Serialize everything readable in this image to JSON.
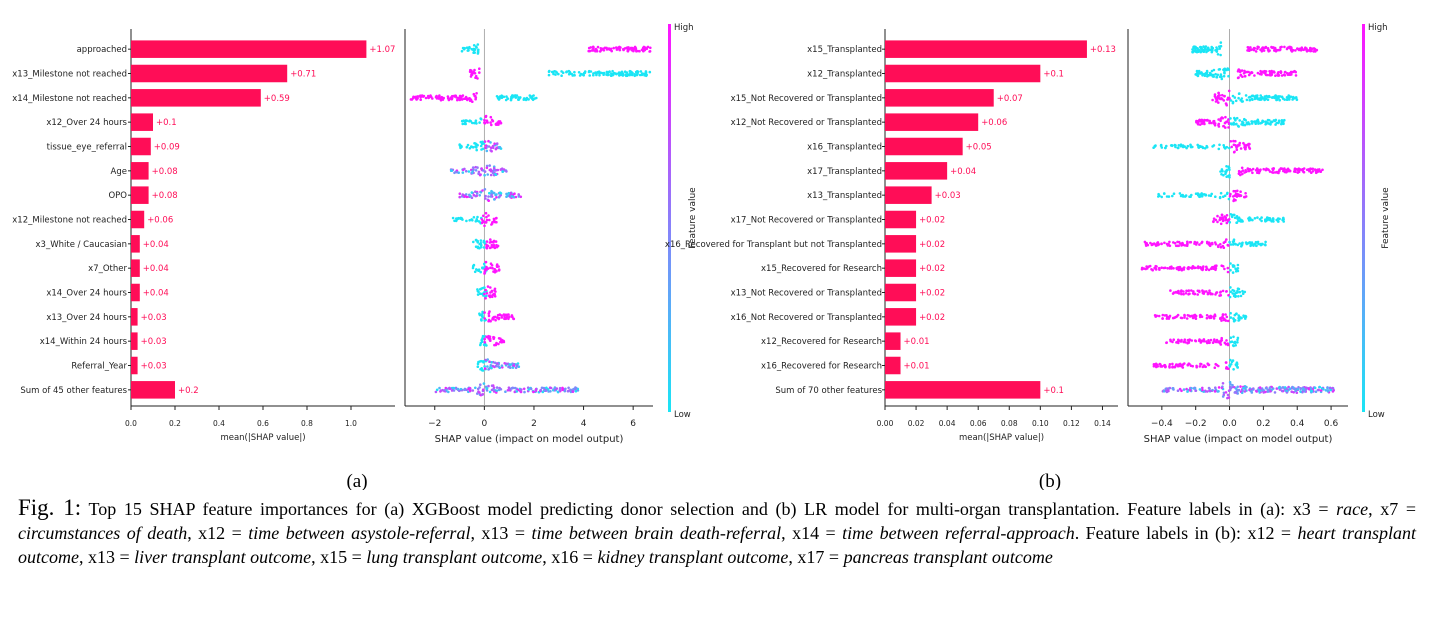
{
  "colors": {
    "bar": "#ff0d57",
    "low": "#1ae5f5",
    "high": "#ff14ff",
    "label": "#ff0d57",
    "axis": "#333333"
  },
  "panels": [
    {
      "id": "a",
      "sublabel": "(a)",
      "bar_chart": {
        "type": "bar",
        "orientation": "horizontal",
        "categories": [
          "approached",
          "x13_Milestone not reached",
          "x14_Milestone not reached",
          "x12_Over 24 hours",
          "tissue_eye_referral",
          "Age",
          "OPO",
          "x12_Milestone not reached",
          "x3_White / Caucasian",
          "x7_Other",
          "x14_Over 24 hours",
          "x13_Over 24 hours",
          "x14_Within 24 hours",
          "Referral_Year",
          "Sum of 45 other features"
        ],
        "values": [
          1.07,
          0.71,
          0.59,
          0.1,
          0.09,
          0.08,
          0.08,
          0.06,
          0.04,
          0.04,
          0.04,
          0.03,
          0.03,
          0.03,
          0.2
        ],
        "value_labels": [
          "+1.07",
          "+0.71",
          "+0.59",
          "+0.1",
          "+0.09",
          "+0.08",
          "+0.08",
          "+0.06",
          "+0.04",
          "+0.04",
          "+0.04",
          "+0.03",
          "+0.03",
          "+0.03",
          "+0.2"
        ],
        "xlim": [
          0,
          1.2
        ],
        "xticks": [
          0.0,
          0.2,
          0.4,
          0.6,
          0.8,
          1.0
        ],
        "xtick_labels": [
          "0.0",
          "0.2",
          "0.4",
          "0.6",
          "0.8",
          "1.0"
        ],
        "xlabel": "mean(|SHAP value|)"
      },
      "beeswarm": {
        "type": "scatter",
        "xlim": [
          -3.2,
          6.8
        ],
        "xticks": [
          -2,
          0,
          2,
          4,
          6
        ],
        "xtick_labels": [
          "−2",
          "0",
          "2",
          "4",
          "6"
        ],
        "xlabel": "SHAP value (impact on model output)",
        "colorbar": {
          "high": "High",
          "low": "Low",
          "label": "Feature value"
        },
        "rows": [
          {
            "clusters": [
              {
                "x0": -0.9,
                "x1": -0.2,
                "c": "low",
                "d": 1
              },
              {
                "x0": 4.2,
                "x1": 6.7,
                "c": "high",
                "d": 1
              }
            ]
          },
          {
            "clusters": [
              {
                "x0": -0.6,
                "x1": -0.2,
                "c": "high",
                "d": 1
              },
              {
                "x0": 2.6,
                "x1": 6.7,
                "c": "low",
                "d": 1
              }
            ]
          },
          {
            "clusters": [
              {
                "x0": -3.0,
                "x1": -0.3,
                "c": "high",
                "d": 1
              },
              {
                "x0": 0.5,
                "x1": 2.1,
                "c": "low",
                "d": 1
              }
            ]
          },
          {
            "clusters": [
              {
                "x0": -0.9,
                "x1": -0.1,
                "c": "low",
                "d": 0.6
              },
              {
                "x0": 0.0,
                "x1": 0.7,
                "c": "high",
                "d": 1
              }
            ]
          },
          {
            "clusters": [
              {
                "x0": -1.0,
                "x1": 0.0,
                "c": "low",
                "d": 0.7
              },
              {
                "x0": 0.0,
                "x1": 0.7,
                "c": "mix",
                "d": 1
              }
            ]
          },
          {
            "clusters": [
              {
                "x0": -1.4,
                "x1": -0.1,
                "c": "mix",
                "d": 0.7
              },
              {
                "x0": -0.1,
                "x1": 0.9,
                "c": "mix",
                "d": 1
              }
            ]
          },
          {
            "clusters": [
              {
                "x0": -1.0,
                "x1": 0.0,
                "c": "mix",
                "d": 0.7
              },
              {
                "x0": 0.0,
                "x1": 1.5,
                "c": "mix",
                "d": 1
              }
            ]
          },
          {
            "clusters": [
              {
                "x0": -1.3,
                "x1": -0.1,
                "c": "low",
                "d": 0.6
              },
              {
                "x0": -0.1,
                "x1": 0.5,
                "c": "high",
                "d": 1
              }
            ]
          },
          {
            "clusters": [
              {
                "x0": -0.5,
                "x1": 0.1,
                "c": "low",
                "d": 0.8
              },
              {
                "x0": 0.0,
                "x1": 0.6,
                "c": "high",
                "d": 1
              }
            ]
          },
          {
            "clusters": [
              {
                "x0": -0.5,
                "x1": 0.1,
                "c": "low",
                "d": 0.8
              },
              {
                "x0": 0.0,
                "x1": 0.6,
                "c": "high",
                "d": 1
              }
            ]
          },
          {
            "clusters": [
              {
                "x0": -0.3,
                "x1": 0.1,
                "c": "low",
                "d": 0.8
              },
              {
                "x0": 0.0,
                "x1": 0.5,
                "c": "high",
                "d": 1
              }
            ]
          },
          {
            "clusters": [
              {
                "x0": -0.2,
                "x1": 0.1,
                "c": "low",
                "d": 0.8
              },
              {
                "x0": 0.0,
                "x1": 1.2,
                "c": "high",
                "d": 1
              }
            ]
          },
          {
            "clusters": [
              {
                "x0": -0.2,
                "x1": 0.1,
                "c": "low",
                "d": 0.8
              },
              {
                "x0": 0.0,
                "x1": 0.8,
                "c": "high",
                "d": 1
              }
            ]
          },
          {
            "clusters": [
              {
                "x0": -0.3,
                "x1": 0.1,
                "c": "low",
                "d": 0.8
              },
              {
                "x0": 0.0,
                "x1": 1.4,
                "c": "mix",
                "d": 1
              }
            ]
          },
          {
            "clusters": [
              {
                "x0": -2.1,
                "x1": -0.2,
                "c": "mix",
                "d": 0.7
              },
              {
                "x0": -0.2,
                "x1": 3.8,
                "c": "mix",
                "d": 1
              }
            ]
          }
        ]
      }
    },
    {
      "id": "b",
      "sublabel": "(b)",
      "bar_chart": {
        "type": "bar",
        "orientation": "horizontal",
        "categories": [
          "x15_Transplanted",
          "x12_Transplanted",
          "x15_Not Recovered or Transplanted",
          "x12_Not Recovered or Transplanted",
          "x16_Transplanted",
          "x17_Transplanted",
          "x13_Transplanted",
          "x17_Not Recovered or Transplanted",
          "x16_Recovered for Transplant but not Transplanted",
          "x15_Recovered for Research",
          "x13_Not Recovered or Transplanted",
          "x16_Not Recovered or Transplanted",
          "x12_Recovered for Research",
          "x16_Recovered for Research",
          "Sum of 70 other features"
        ],
        "values": [
          0.13,
          0.1,
          0.07,
          0.06,
          0.05,
          0.04,
          0.03,
          0.02,
          0.02,
          0.02,
          0.02,
          0.02,
          0.01,
          0.01,
          0.1
        ],
        "value_labels": [
          "+0.13",
          "+0.1",
          "+0.07",
          "+0.06",
          "+0.05",
          "+0.04",
          "+0.03",
          "+0.02",
          "+0.02",
          "+0.02",
          "+0.02",
          "+0.02",
          "+0.01",
          "+0.01",
          "+0.1"
        ],
        "xlim": [
          0,
          0.15
        ],
        "xticks": [
          0.0,
          0.02,
          0.04,
          0.06,
          0.08,
          0.1,
          0.12,
          0.14
        ],
        "xtick_labels": [
          "0.00",
          "0.02",
          "0.04",
          "0.06",
          "0.08",
          "0.10",
          "0.12",
          "0.14"
        ],
        "xlabel": "mean(|SHAP value|)"
      },
      "beeswarm": {
        "type": "scatter",
        "xlim": [
          -0.6,
          0.7
        ],
        "xticks": [
          -0.4,
          -0.2,
          0.0,
          0.2,
          0.4,
          0.6
        ],
        "xtick_labels": [
          "−0.4",
          "−0.2",
          "0.0",
          "0.2",
          "0.4",
          "0.6"
        ],
        "xlabel": "SHAP value (impact on model output)",
        "colorbar": {
          "high": "High",
          "low": "Low",
          "label": "Feature value"
        },
        "rows": [
          {
            "clusters": [
              {
                "x0": -0.22,
                "x1": -0.05,
                "c": "low",
                "d": 1.6
              },
              {
                "x0": 0.1,
                "x1": 0.52,
                "c": "high",
                "d": 1
              }
            ]
          },
          {
            "clusters": [
              {
                "x0": -0.2,
                "x1": 0.0,
                "c": "low",
                "d": 1.4
              },
              {
                "x0": 0.05,
                "x1": 0.4,
                "c": "high",
                "d": 1
              }
            ]
          },
          {
            "clusters": [
              {
                "x0": -0.1,
                "x1": 0.0,
                "c": "high",
                "d": 1.3
              },
              {
                "x0": 0.0,
                "x1": 0.4,
                "c": "low",
                "d": 1
              }
            ]
          },
          {
            "clusters": [
              {
                "x0": -0.2,
                "x1": 0.0,
                "c": "high",
                "d": 1.2
              },
              {
                "x0": 0.0,
                "x1": 0.33,
                "c": "low",
                "d": 1
              }
            ]
          },
          {
            "clusters": [
              {
                "x0": -0.45,
                "x1": 0.0,
                "c": "low",
                "d": 0.5
              },
              {
                "x0": 0.0,
                "x1": 0.12,
                "c": "high",
                "d": 1
              }
            ]
          },
          {
            "clusters": [
              {
                "x0": -0.06,
                "x1": 0.0,
                "c": "low",
                "d": 1.2
              },
              {
                "x0": 0.05,
                "x1": 0.55,
                "c": "high",
                "d": 1
              }
            ]
          },
          {
            "clusters": [
              {
                "x0": -0.44,
                "x1": 0.0,
                "c": "low",
                "d": 0.5
              },
              {
                "x0": 0.0,
                "x1": 0.1,
                "c": "high",
                "d": 1
              }
            ]
          },
          {
            "clusters": [
              {
                "x0": -0.1,
                "x1": 0.0,
                "c": "high",
                "d": 1
              },
              {
                "x0": 0.0,
                "x1": 0.32,
                "c": "low",
                "d": 0.8
              }
            ]
          },
          {
            "clusters": [
              {
                "x0": -0.5,
                "x1": 0.0,
                "c": "high",
                "d": 0.7
              },
              {
                "x0": 0.0,
                "x1": 0.22,
                "c": "low",
                "d": 0.8
              }
            ]
          },
          {
            "clusters": [
              {
                "x0": -0.52,
                "x1": 0.0,
                "c": "high",
                "d": 0.7
              },
              {
                "x0": 0.0,
                "x1": 0.05,
                "c": "low",
                "d": 0.8
              }
            ]
          },
          {
            "clusters": [
              {
                "x0": -0.35,
                "x1": 0.0,
                "c": "high",
                "d": 0.7
              },
              {
                "x0": 0.0,
                "x1": 0.1,
                "c": "low",
                "d": 0.8
              }
            ]
          },
          {
            "clusters": [
              {
                "x0": -0.45,
                "x1": 0.0,
                "c": "high",
                "d": 0.7
              },
              {
                "x0": 0.0,
                "x1": 0.1,
                "c": "low",
                "d": 0.8
              }
            ]
          },
          {
            "clusters": [
              {
                "x0": -0.4,
                "x1": 0.0,
                "c": "high",
                "d": 0.7
              },
              {
                "x0": 0.0,
                "x1": 0.05,
                "c": "low",
                "d": 0.8
              }
            ]
          },
          {
            "clusters": [
              {
                "x0": -0.45,
                "x1": 0.0,
                "c": "high",
                "d": 0.7
              },
              {
                "x0": 0.0,
                "x1": 0.05,
                "c": "low",
                "d": 0.8
              }
            ]
          },
          {
            "clusters": [
              {
                "x0": -0.4,
                "x1": -0.05,
                "c": "mix",
                "d": 0.7
              },
              {
                "x0": -0.05,
                "x1": 0.62,
                "c": "mix",
                "d": 1.4
              }
            ]
          }
        ]
      }
    }
  ],
  "caption": {
    "fig_label": "Fig. 1:",
    "segments": [
      {
        "t": " Top 15 SHAP feature importances for (a) XGBoost model predicting donor selection and (b) LR model for multi-organ transplantation. Feature labels in (a): x3 = ",
        "i": false
      },
      {
        "t": "race",
        "i": true
      },
      {
        "t": ", x7 = ",
        "i": false
      },
      {
        "t": "circumstances of death",
        "i": true
      },
      {
        "t": ", x12 = ",
        "i": false
      },
      {
        "t": "time between asystole-referral",
        "i": true
      },
      {
        "t": ", x13 = ",
        "i": false
      },
      {
        "t": "time between brain death-referral",
        "i": true
      },
      {
        "t": ", x14 = ",
        "i": false
      },
      {
        "t": "time between referral-approach",
        "i": true
      },
      {
        "t": ". Feature labels in (b): x12 = ",
        "i": false
      },
      {
        "t": "heart transplant outcome",
        "i": true
      },
      {
        "t": ", x13 = ",
        "i": false
      },
      {
        "t": "liver transplant outcome",
        "i": true
      },
      {
        "t": ", x15 = ",
        "i": false
      },
      {
        "t": "lung transplant outcome",
        "i": true
      },
      {
        "t": ", x16 = ",
        "i": false
      },
      {
        "t": "kidney transplant outcome",
        "i": true
      },
      {
        "t": ", x17 = ",
        "i": false
      },
      {
        "t": "pancreas transplant outcome",
        "i": true
      }
    ]
  }
}
